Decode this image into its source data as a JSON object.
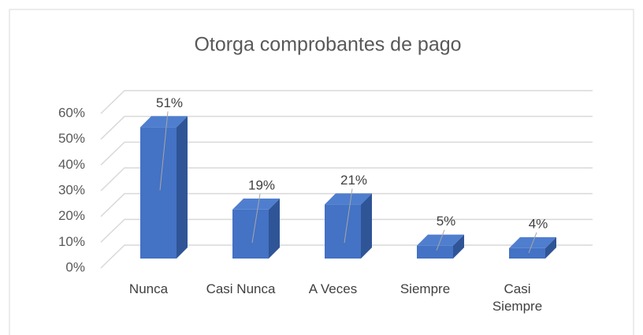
{
  "chart_data": {
    "type": "bar3d",
    "title": "Otorga comprobantes de pago",
    "categories": [
      "Nunca",
      "Casi Nunca",
      "A Veces",
      "Siempre",
      "Casi Siempre"
    ],
    "values": [
      51,
      19,
      21,
      5,
      4
    ],
    "value_labels": [
      "51%",
      "19%",
      "21%",
      "5%",
      "4%"
    ],
    "color": "#4472c4",
    "ylim": [
      0,
      60
    ],
    "yticks": [
      {
        "value": 0,
        "label": "0%"
      },
      {
        "value": 10,
        "label": "10%"
      },
      {
        "value": 20,
        "label": "20%"
      },
      {
        "value": 30,
        "label": "30%"
      },
      {
        "value": 40,
        "label": "40%"
      },
      {
        "value": 50,
        "label": "50%"
      },
      {
        "value": 60,
        "label": "60%"
      }
    ],
    "grid": true
  }
}
